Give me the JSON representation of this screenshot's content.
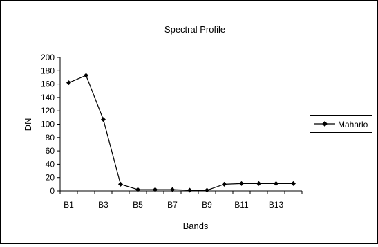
{
  "chart_data": {
    "type": "line",
    "title": "Spectral Profile",
    "xlabel": "Bands",
    "ylabel": "DN",
    "categories": [
      "B1",
      "B2",
      "B3",
      "B4",
      "B5",
      "B6",
      "B7",
      "B8",
      "B9",
      "B10",
      "B11",
      "B12",
      "B13",
      "B14"
    ],
    "x_tick_labels": [
      "B1",
      "B3",
      "B5",
      "B7",
      "B9",
      "B11",
      "B13"
    ],
    "ylim": [
      0,
      200
    ],
    "y_ticks": [
      0,
      20,
      40,
      60,
      80,
      100,
      120,
      140,
      160,
      180,
      200
    ],
    "series": [
      {
        "name": "Maharlo",
        "values": [
          162,
          173,
          107,
          10,
          2,
          2,
          2,
          1,
          1,
          10,
          11,
          11,
          11,
          11
        ],
        "color": "#000000",
        "marker": "diamond"
      }
    ],
    "legend_position": "right",
    "grid": false
  }
}
